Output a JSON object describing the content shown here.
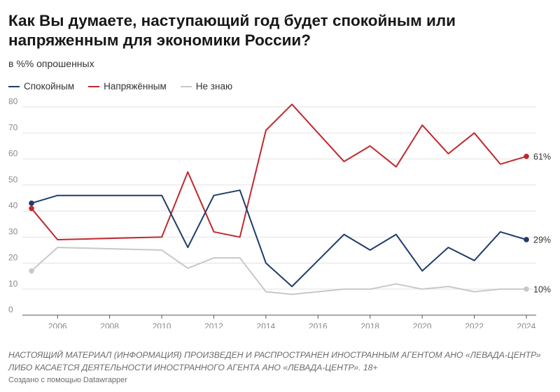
{
  "chart_data": {
    "type": "line",
    "title": "Как Вы думаете, наступающий год будет спокойным или напряженным для экономики России?",
    "subtitle": "в %% опрошенных",
    "x": [
      2005,
      2006,
      2010,
      2011,
      2012,
      2013,
      2014,
      2015,
      2016,
      2017,
      2018,
      2019,
      2020,
      2021,
      2022,
      2023,
      2024
    ],
    "series": [
      {
        "name": "Спокойным",
        "color": "#1f3d6b",
        "values": [
          43,
          46,
          46,
          26,
          46,
          48,
          20,
          11,
          21,
          31,
          25,
          31,
          17,
          26,
          21,
          32,
          29
        ],
        "end_label": "29%"
      },
      {
        "name": "Напряжённым",
        "color": "#c0282d",
        "values": [
          41,
          29,
          30,
          55,
          32,
          30,
          71,
          81,
          70,
          59,
          65,
          57,
          73,
          62,
          70,
          58,
          61
        ],
        "end_label": "61%"
      },
      {
        "name": "Не знаю",
        "color": "#c8c8c8",
        "values": [
          17,
          26,
          25,
          18,
          22,
          22,
          9,
          8,
          9,
          10,
          10,
          12,
          10,
          11,
          9,
          10,
          10
        ],
        "end_label": "10%"
      }
    ],
    "xlim": [
      2005,
      2024
    ],
    "ylim": [
      0,
      80
    ],
    "y_ticks": [
      "0",
      "10",
      "20",
      "30",
      "40",
      "50",
      "60",
      "70",
      "80"
    ],
    "x_ticks": [
      "2006",
      "2008",
      "2010",
      "2012",
      "2014",
      "2016",
      "2018",
      "2020",
      "2022",
      "2024"
    ],
    "grid": true,
    "legend_position": "top-left"
  },
  "footer": {
    "note": "НАСТОЯЩИЙ МАТЕРИАЛ (ИНФОРМАЦИЯ) ПРОИЗВЕДЕН И РАСПРОСТРАНЕН ИНОСТРАННЫМ АГЕНТОМ АНО «ЛЕВАДА-ЦЕНТР» ЛИБО КАСАЕТСЯ ДЕЯТЕЛЬНОСТИ ИНОСТРАННОГО АГЕНТА АНО «ЛЕВАДА-ЦЕНТР». 18+",
    "credit": "Создано с помощью Datawrapper"
  }
}
